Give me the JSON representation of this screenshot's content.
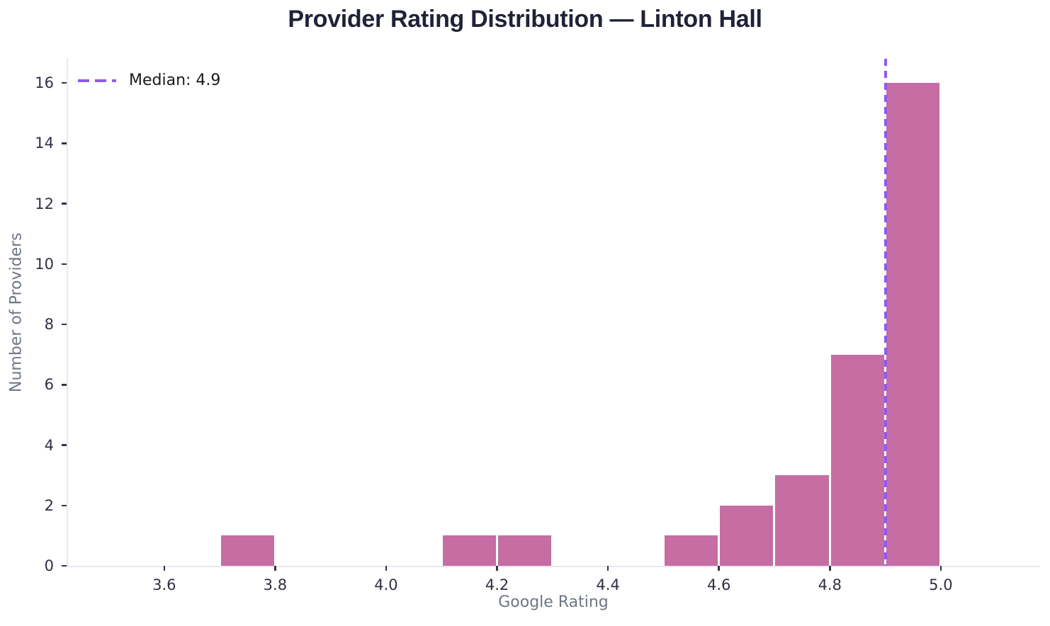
{
  "title": "Provider Rating Distribution — Linton Hall",
  "legend": {
    "label": "Median: 4.9"
  },
  "colors": {
    "background": "#ffffff",
    "bar": "#c66da4",
    "bar_edge": "#ffffff",
    "median": "#8d5bef",
    "title": "#1f2238",
    "axis_label": "#6e7687",
    "tick_label": "#2d3142",
    "tick_mark": "#343347",
    "spine": "#e9e8f0"
  },
  "chart_data": {
    "type": "bar",
    "subtype": "histogram",
    "title": "Provider Rating Distribution — Linton Hall",
    "xlabel": "Google Rating",
    "ylabel": "Number of Providers",
    "bin_width": 0.1,
    "bin_edges": [
      3.7,
      3.8,
      3.9,
      4.0,
      4.1,
      4.2,
      4.3,
      4.4,
      4.5,
      4.6,
      4.7,
      4.8,
      4.9,
      5.0
    ],
    "counts": [
      1,
      0,
      0,
      0,
      1,
      1,
      0,
      0,
      1,
      2,
      3,
      7,
      16
    ],
    "median": 4.9,
    "median_label": "Median: 4.9",
    "xticks": [
      3.6,
      3.8,
      4.0,
      4.2,
      4.4,
      4.6,
      4.8,
      5.0
    ],
    "yticks": [
      0,
      2,
      4,
      6,
      8,
      10,
      12,
      14,
      16
    ],
    "xlim": [
      3.424,
      5.179
    ],
    "ylim": [
      0,
      16.8
    ],
    "grid": false,
    "legend_position": "upper left"
  }
}
